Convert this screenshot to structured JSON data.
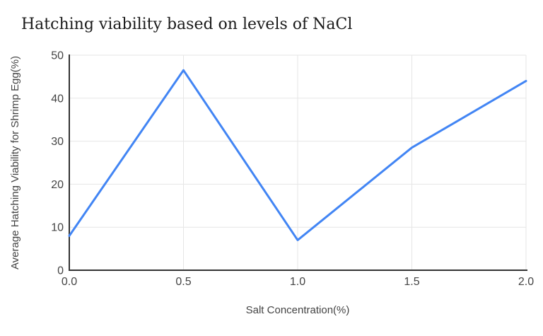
{
  "chart_data": {
    "type": "line",
    "title": "Hatching viability based on levels of NaCl",
    "xlabel": "Salt Concentration(%)",
    "ylabel": "Average Hatching Viability for Shrimp Egg(%)",
    "x": [
      0.0,
      0.5,
      1.0,
      1.5,
      2.0
    ],
    "values": [
      8,
      46.5,
      7,
      28.5,
      44
    ],
    "x_tick_labels": [
      "0.0",
      "0.5",
      "1.0",
      "1.5",
      "2.0"
    ],
    "y_tick_labels": [
      "0",
      "10",
      "20",
      "30",
      "40",
      "50"
    ],
    "y_ticks": [
      0,
      10,
      20,
      30,
      40,
      50
    ],
    "xlim": [
      0.0,
      2.0
    ],
    "ylim": [
      0,
      50
    ],
    "grid": true,
    "legend_position": "none",
    "colors": {
      "line": "#4285f4",
      "gridline": "#e6e6e6",
      "axis_line": "#333333",
      "tick_text": "#444444",
      "axis_title_text": "#444444",
      "title_text": "#1a1a1a",
      "background": "#ffffff"
    }
  }
}
